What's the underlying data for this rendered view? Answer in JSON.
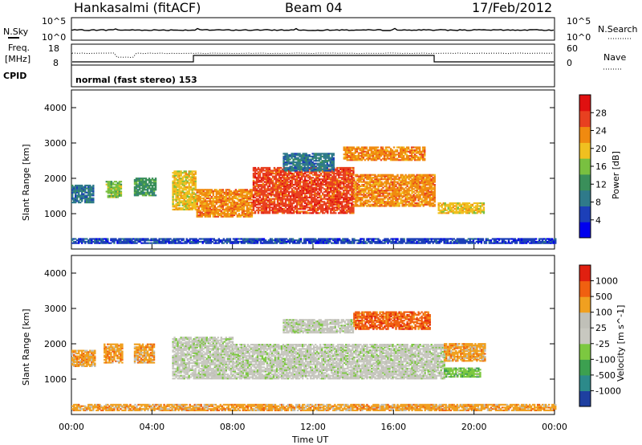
{
  "header": {
    "station": "Hankasalmi (fitACF)",
    "beam": "Beam 04",
    "date": "17/Feb/2012"
  },
  "top_panel": {
    "left_label": "N.Sky",
    "right_label": "N.Search",
    "left_ticks": [
      "10^5",
      "10^0"
    ],
    "right_ticks": [
      "10^5",
      "10^0"
    ]
  },
  "freq_panel": {
    "left_label_1": "Freq.",
    "left_label_2": "[MHz]",
    "right_label": "Nave",
    "left_ticks": [
      "18",
      "8"
    ],
    "right_ticks": [
      "60",
      "0"
    ],
    "cpid_label": "CPID",
    "mode_text": "normal (fast stereo) 153"
  },
  "chart_data": [
    {
      "type": "heatmap",
      "panel": "power",
      "ylabel": "Slant Range [km]",
      "xlabel": "",
      "ylim": [
        0,
        4500
      ],
      "y_ticks": [
        "4000",
        "3000",
        "2000",
        "1000"
      ],
      "colorbar_label": "Power [dB]",
      "colorbar_ticks": [
        "28",
        "24",
        "20",
        "16",
        "12",
        "8",
        "4"
      ],
      "colors": [
        "#0000ee",
        "#1c3fb8",
        "#2f7a8a",
        "#3a8f5a",
        "#79c040",
        "#f0c020",
        "#f08a10",
        "#e84020",
        "#e01010"
      ],
      "bands": [
        {
          "t0": 0.0,
          "t1": 1.1,
          "r0": 1300,
          "r1": 1800,
          "level": 2
        },
        {
          "t0": 1.7,
          "t1": 2.5,
          "r0": 1450,
          "r1": 1900,
          "level": 4
        },
        {
          "t0": 3.1,
          "t1": 4.2,
          "r0": 1500,
          "r1": 2000,
          "level": 3
        },
        {
          "t0": 5.0,
          "t1": 6.2,
          "r0": 1100,
          "r1": 2200,
          "level": 5
        },
        {
          "t0": 6.2,
          "t1": 9.0,
          "r0": 900,
          "r1": 1700,
          "level": 6
        },
        {
          "t0": 9.0,
          "t1": 14.0,
          "r0": 1000,
          "r1": 2300,
          "level": 7
        },
        {
          "t0": 14.0,
          "t1": 18.0,
          "r0": 1200,
          "r1": 2100,
          "level": 6
        },
        {
          "t0": 13.5,
          "t1": 17.5,
          "r0": 2500,
          "r1": 2900,
          "level": 6
        },
        {
          "t0": 10.5,
          "t1": 13.0,
          "r0": 2200,
          "r1": 2700,
          "level": 2
        },
        {
          "t0": 18.2,
          "t1": 20.5,
          "r0": 1000,
          "r1": 1300,
          "level": 5
        },
        {
          "t0": 0.0,
          "t1": 24.0,
          "r0": 150,
          "r1": 300,
          "level": 1
        }
      ]
    },
    {
      "type": "heatmap",
      "panel": "velocity",
      "ylabel": "Slant Range [km]",
      "xlabel": "Time UT",
      "ylim": [
        0,
        4500
      ],
      "y_ticks": [
        "4000",
        "3000",
        "2000",
        "1000"
      ],
      "x_ticks": [
        "00:00",
        "04:00",
        "08:00",
        "12:00",
        "16:00",
        "20:00",
        "00:00"
      ],
      "colorbar_label": "Velocity [m s^-1]",
      "colorbar_ticks": [
        "1000",
        "500",
        "100",
        "25",
        "-25",
        "-100",
        "-500",
        "-1000"
      ],
      "colors": [
        "#1e3fa0",
        "#2c8a8a",
        "#3ca050",
        "#7cc840",
        "#c8c8c0",
        "#c0c0b8",
        "#f0a020",
        "#f06010",
        "#e02010"
      ],
      "bands": [
        {
          "t0": 0.0,
          "t1": 1.2,
          "r0": 1350,
          "r1": 1800,
          "level": 6
        },
        {
          "t0": 1.6,
          "t1": 2.5,
          "r0": 1450,
          "r1": 2000,
          "level": 6
        },
        {
          "t0": 3.1,
          "t1": 4.1,
          "r0": 1450,
          "r1": 2000,
          "level": 6
        },
        {
          "t0": 5.0,
          "t1": 8.0,
          "r0": 1000,
          "r1": 2200,
          "level": 4
        },
        {
          "t0": 8.0,
          "t1": 18.5,
          "r0": 1000,
          "r1": 2000,
          "level": 4
        },
        {
          "t0": 10.5,
          "t1": 14.0,
          "r0": 2300,
          "r1": 2700,
          "level": 4
        },
        {
          "t0": 14.0,
          "t1": 17.8,
          "r0": 2400,
          "r1": 2900,
          "level": 7
        },
        {
          "t0": 18.5,
          "t1": 20.3,
          "r0": 1050,
          "r1": 1300,
          "level": 3
        },
        {
          "t0": 18.5,
          "t1": 20.5,
          "r0": 1500,
          "r1": 2000,
          "level": 6
        },
        {
          "t0": 0.0,
          "t1": 24.0,
          "r0": 100,
          "r1": 300,
          "level": 6
        }
      ]
    }
  ]
}
